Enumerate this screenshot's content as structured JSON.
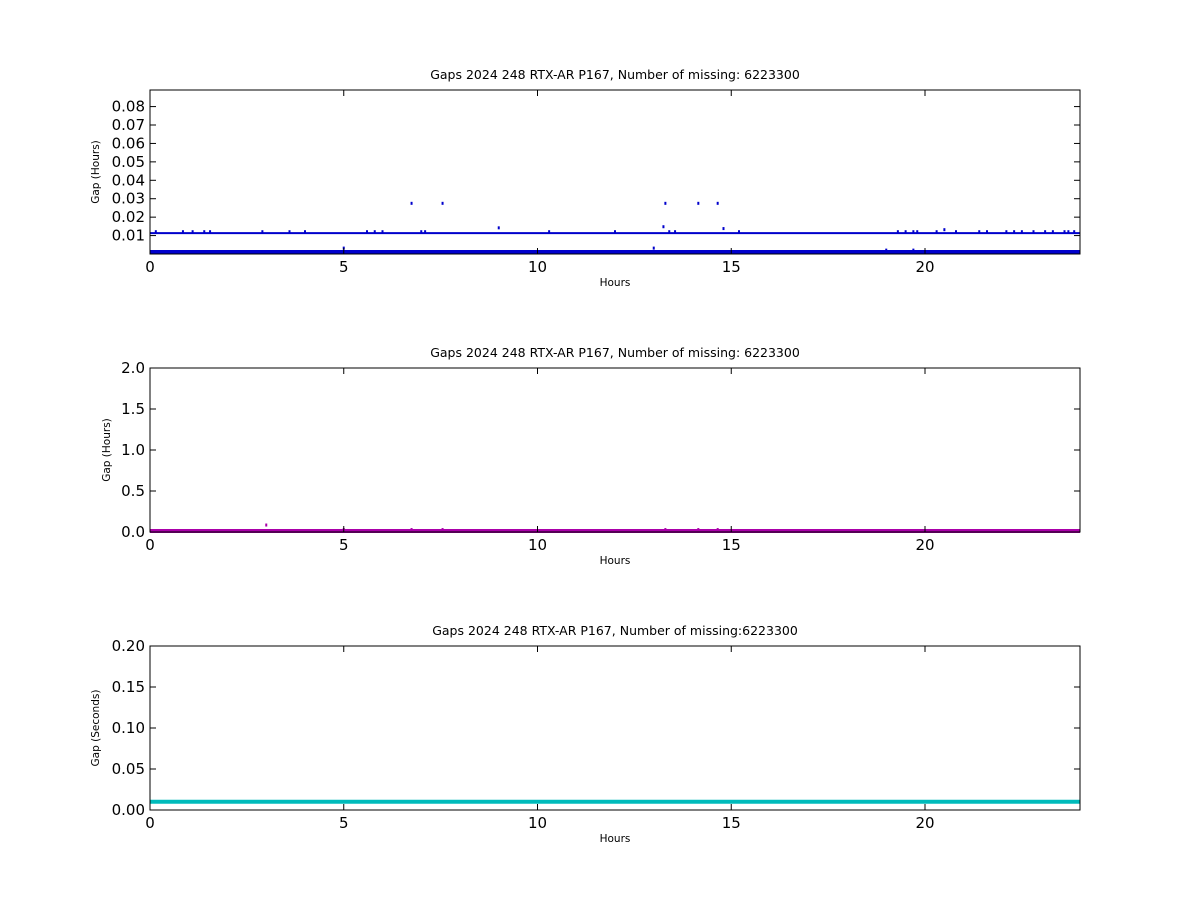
{
  "chart_data": [
    {
      "type": "scatter",
      "title": "Gaps 2024 248 RTX-AR  P167, Number of missing: 6223300",
      "xlabel": "Hours",
      "ylabel": "Gap (Hours)",
      "xlim": [
        0,
        24
      ],
      "ylim": [
        0,
        0.089
      ],
      "xticks": [
        0,
        5,
        10,
        15,
        20
      ],
      "yticks": [
        0.01,
        0.02,
        0.03,
        0.04,
        0.05,
        0.06,
        0.07,
        0.08
      ],
      "ytick_labels": [
        "0.01",
        "0.02",
        "0.03",
        "0.04",
        "0.05",
        "0.06",
        "0.07",
        "0.08"
      ],
      "color": "#0000cc",
      "grid": false,
      "series": [
        {
          "bands": [
            {
              "y": 0.0011,
              "x_from": 0,
              "x_to": 24
            },
            {
              "y": 0.0113,
              "x_from": 0,
              "x_to": 24
            }
          ],
          "points": [
            [
              6.75,
              0.0275
            ],
            [
              7.55,
              0.0275
            ],
            [
              13.3,
              0.0275
            ],
            [
              14.15,
              0.0275
            ],
            [
              14.65,
              0.0275
            ],
            [
              9.0,
              0.0142
            ],
            [
              13.25,
              0.0148
            ],
            [
              14.8,
              0.0138
            ],
            [
              5.0,
              0.0032
            ],
            [
              13.0,
              0.0032
            ],
            [
              19.0,
              0.0021
            ],
            [
              19.7,
              0.0021
            ],
            [
              0.15,
              0.0121
            ],
            [
              0.85,
              0.0121
            ],
            [
              1.1,
              0.0121
            ],
            [
              1.4,
              0.0121
            ],
            [
              1.55,
              0.0121
            ],
            [
              2.9,
              0.0121
            ],
            [
              3.6,
              0.0121
            ],
            [
              4.0,
              0.0121
            ],
            [
              5.6,
              0.0121
            ],
            [
              5.8,
              0.0121
            ],
            [
              6.0,
              0.0121
            ],
            [
              7.0,
              0.0121
            ],
            [
              7.1,
              0.0121
            ],
            [
              10.3,
              0.0121
            ],
            [
              12.0,
              0.0121
            ],
            [
              13.4,
              0.0121
            ],
            [
              13.55,
              0.0121
            ],
            [
              15.2,
              0.0121
            ],
            [
              19.3,
              0.0121
            ],
            [
              19.5,
              0.0121
            ],
            [
              19.7,
              0.0121
            ],
            [
              19.8,
              0.0121
            ],
            [
              20.3,
              0.0121
            ],
            [
              20.5,
              0.0132
            ],
            [
              20.8,
              0.0121
            ],
            [
              21.4,
              0.0121
            ],
            [
              21.6,
              0.0121
            ],
            [
              22.1,
              0.0121
            ],
            [
              22.3,
              0.0121
            ],
            [
              22.5,
              0.0121
            ],
            [
              22.8,
              0.0121
            ],
            [
              23.1,
              0.0121
            ],
            [
              23.3,
              0.0121
            ],
            [
              23.6,
              0.0121
            ],
            [
              23.7,
              0.0121
            ],
            [
              23.85,
              0.0121
            ]
          ]
        }
      ]
    },
    {
      "type": "scatter",
      "title": "Gaps 2024 248 RTX-AR  P167, Number of missing: 6223300",
      "xlabel": "Hours",
      "ylabel": "Gap (Hours)",
      "xlim": [
        0,
        24
      ],
      "ylim": [
        0,
        2.0
      ],
      "xticks": [
        0,
        5,
        10,
        15,
        20
      ],
      "yticks": [
        0.0,
        0.5,
        1.0,
        1.5,
        2.0
      ],
      "ytick_labels": [
        "0.0",
        "0.5",
        "1.0",
        "1.5",
        "2.0"
      ],
      "color": "#aa00aa",
      "grid": false,
      "series": [
        {
          "bands": [
            {
              "y": 0.012,
              "x_from": 0,
              "x_to": 24
            }
          ],
          "points": [
            [
              3.0,
              0.085
            ],
            [
              5.0,
              0.03
            ],
            [
              6.75,
              0.03
            ],
            [
              7.55,
              0.03
            ],
            [
              13.3,
              0.03
            ],
            [
              14.15,
              0.03
            ],
            [
              14.65,
              0.03
            ]
          ]
        }
      ]
    },
    {
      "type": "scatter",
      "title": "Gaps 2024 248 RTX-AR  P167, Number of missing:6223300",
      "xlabel": "Hours",
      "ylabel": "Gap (Seconds)",
      "xlim": [
        0,
        24
      ],
      "ylim": [
        0,
        0.2
      ],
      "xticks": [
        0,
        5,
        10,
        15,
        20
      ],
      "yticks": [
        0.0,
        0.05,
        0.1,
        0.15,
        0.2
      ],
      "ytick_labels": [
        "0.00",
        "0.05",
        "0.10",
        "0.15",
        "0.20"
      ],
      "color": "#00bbbb",
      "grid": false,
      "series": [
        {
          "bands": [
            {
              "y": 0.01,
              "x_from": 0,
              "x_to": 24
            }
          ],
          "points": []
        }
      ]
    }
  ]
}
